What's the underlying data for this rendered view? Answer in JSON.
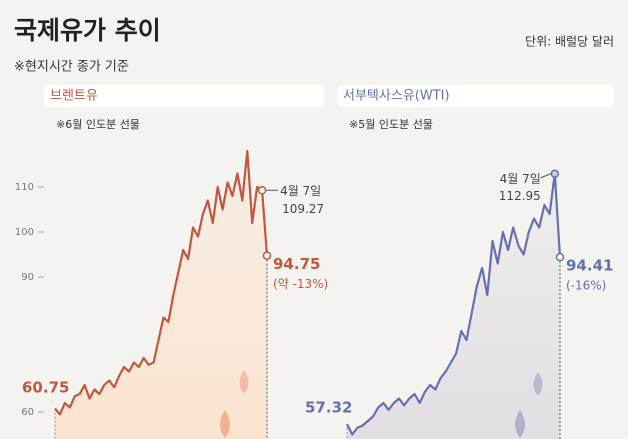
{
  "header": {
    "title": "국제유가 추이",
    "note": "※현지시간 종가 기준",
    "unit": "단위: 배럴당 달러"
  },
  "chart_data": [
    {
      "type": "line",
      "subtitle": "※6월 인도분 선물",
      "series": [
        {
          "name": "브렌트유",
          "color": "#c0573f",
          "fill": "#fbe3cf",
          "values": [
            60.75,
            59.5,
            62,
            61,
            63.5,
            64,
            66,
            63,
            65,
            64,
            66,
            67,
            65.5,
            68,
            70,
            69,
            71,
            70,
            72,
            70.5,
            71,
            76,
            81,
            80,
            86,
            91,
            96,
            94,
            101,
            99,
            104,
            107,
            102,
            110,
            105,
            111,
            108,
            113,
            107,
            118,
            102,
            110,
            109.27,
            94.75
          ]
        }
      ],
      "peak_date_label": "4월 7일",
      "change_label": "(약 -13%)",
      "ylim": [
        54,
        120
      ],
      "yticks": [
        60,
        90,
        100,
        110
      ]
    },
    {
      "type": "line",
      "subtitle": "※5월 인도분 선물",
      "series": [
        {
          "name": "서부텍사스유(WTI)",
          "color": "#6470b0",
          "fill": "#e2dee4",
          "values": [
            57.32,
            55,
            56.5,
            57,
            58,
            59,
            61,
            62,
            60.5,
            62,
            63,
            61.5,
            63,
            64,
            62,
            64.5,
            66,
            65,
            67.5,
            69,
            71,
            73,
            78,
            76,
            82,
            88,
            92,
            86,
            98,
            93,
            100,
            96,
            101,
            97,
            95,
            100,
            103,
            101,
            106,
            104,
            112.95,
            94.41
          ]
        }
      ],
      "peak_date_label": "4월 7일",
      "change_label": "(-16%)",
      "ylim": [
        54,
        120
      ]
    }
  ]
}
